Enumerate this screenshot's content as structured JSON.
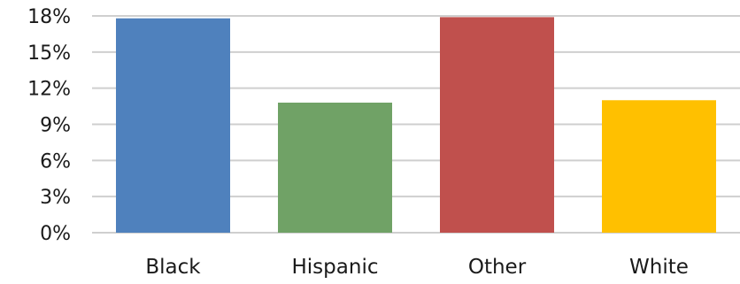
{
  "chart_data": {
    "type": "bar",
    "categories": [
      "Black",
      "Hispanic",
      "Other",
      "White"
    ],
    "values": [
      17.8,
      10.8,
      17.9,
      11.0
    ],
    "colors": [
      "#4f81bd",
      "#70a266",
      "#c0504d",
      "#ffc000"
    ],
    "ylim": [
      0,
      18
    ],
    "yticks": [
      "0%",
      "3%",
      "6%",
      "9%",
      "12%",
      "15%",
      "18%"
    ],
    "ytick_values": [
      0,
      3,
      6,
      9,
      12,
      15,
      18
    ],
    "title": "",
    "xlabel": "",
    "ylabel": "",
    "grid": true,
    "legend": "none"
  }
}
